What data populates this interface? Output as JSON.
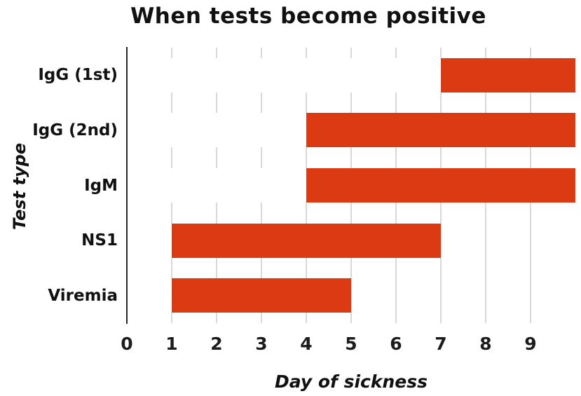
{
  "chart_data": {
    "type": "bar",
    "orientation": "horizontal",
    "title": "When tests become positive",
    "xlabel": "Day of sickness",
    "ylabel": "Test type",
    "categories": [
      "IgG (1st)",
      "IgG (2nd)",
      "IgM",
      "NS1",
      "Viremia"
    ],
    "bars": [
      {
        "category": "IgG (1st)",
        "start_day": 7,
        "end_day": 10
      },
      {
        "category": "IgG (2nd)",
        "start_day": 4,
        "end_day": 10
      },
      {
        "category": "IgM",
        "start_day": 4,
        "end_day": 10
      },
      {
        "category": "NS1",
        "start_day": 1,
        "end_day": 7
      },
      {
        "category": "Viremia",
        "start_day": 1,
        "end_day": 5
      }
    ],
    "xlim": [
      0,
      10
    ],
    "xticks": [
      "0",
      "1",
      "2",
      "3",
      "4",
      "5",
      "6",
      "7",
      "8",
      "9"
    ],
    "grid": "vertical",
    "legend": "none",
    "colors": {
      "bar": "#db3a13",
      "gridline": "#d9d9d9",
      "axis": "#262626",
      "text": "#111111",
      "background": "#ffffff"
    }
  }
}
